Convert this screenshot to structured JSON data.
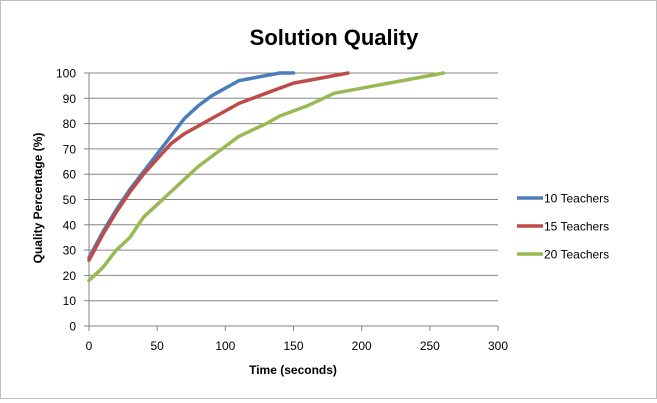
{
  "chart_data": {
    "type": "line",
    "title": "Solution Quality",
    "xlabel": "Time (seconds)",
    "ylabel": "Quality Percentage (%)",
    "xlim": [
      0,
      300
    ],
    "ylim": [
      0,
      100
    ],
    "xticks": [
      0,
      50,
      100,
      150,
      200,
      250,
      300
    ],
    "yticks": [
      0,
      10,
      20,
      30,
      40,
      50,
      60,
      70,
      80,
      90,
      100
    ],
    "grid": "horizontal",
    "legend_position": "right",
    "series": [
      {
        "name": "10 Teachers",
        "color": "#4a7ebb",
        "points": [
          [
            0,
            27
          ],
          [
            10,
            37
          ],
          [
            20,
            46
          ],
          [
            30,
            54
          ],
          [
            40,
            61
          ],
          [
            50,
            68
          ],
          [
            60,
            75
          ],
          [
            70,
            82
          ],
          [
            80,
            87
          ],
          [
            90,
            91
          ],
          [
            100,
            94
          ],
          [
            110,
            97
          ],
          [
            120,
            98
          ],
          [
            130,
            99
          ],
          [
            140,
            100
          ],
          [
            150,
            100
          ]
        ]
      },
      {
        "name": "15 Teachers",
        "color": "#be4b48",
        "points": [
          [
            0,
            26
          ],
          [
            10,
            36
          ],
          [
            20,
            45
          ],
          [
            30,
            53
          ],
          [
            40,
            60
          ],
          [
            50,
            66
          ],
          [
            60,
            72
          ],
          [
            70,
            76
          ],
          [
            80,
            79
          ],
          [
            90,
            82
          ],
          [
            100,
            85
          ],
          [
            110,
            88
          ],
          [
            130,
            92
          ],
          [
            150,
            96
          ],
          [
            170,
            98
          ],
          [
            190,
            100
          ]
        ]
      },
      {
        "name": "20 Teachers",
        "color": "#98b954",
        "points": [
          [
            0,
            18
          ],
          [
            10,
            23
          ],
          [
            20,
            30
          ],
          [
            30,
            35
          ],
          [
            40,
            43
          ],
          [
            50,
            48
          ],
          [
            60,
            53
          ],
          [
            70,
            58
          ],
          [
            80,
            63
          ],
          [
            90,
            67
          ],
          [
            100,
            71
          ],
          [
            110,
            75
          ],
          [
            130,
            80
          ],
          [
            140,
            83
          ],
          [
            160,
            87
          ],
          [
            180,
            92
          ],
          [
            200,
            94
          ],
          [
            220,
            96
          ],
          [
            240,
            98
          ],
          [
            260,
            100
          ]
        ]
      }
    ]
  }
}
